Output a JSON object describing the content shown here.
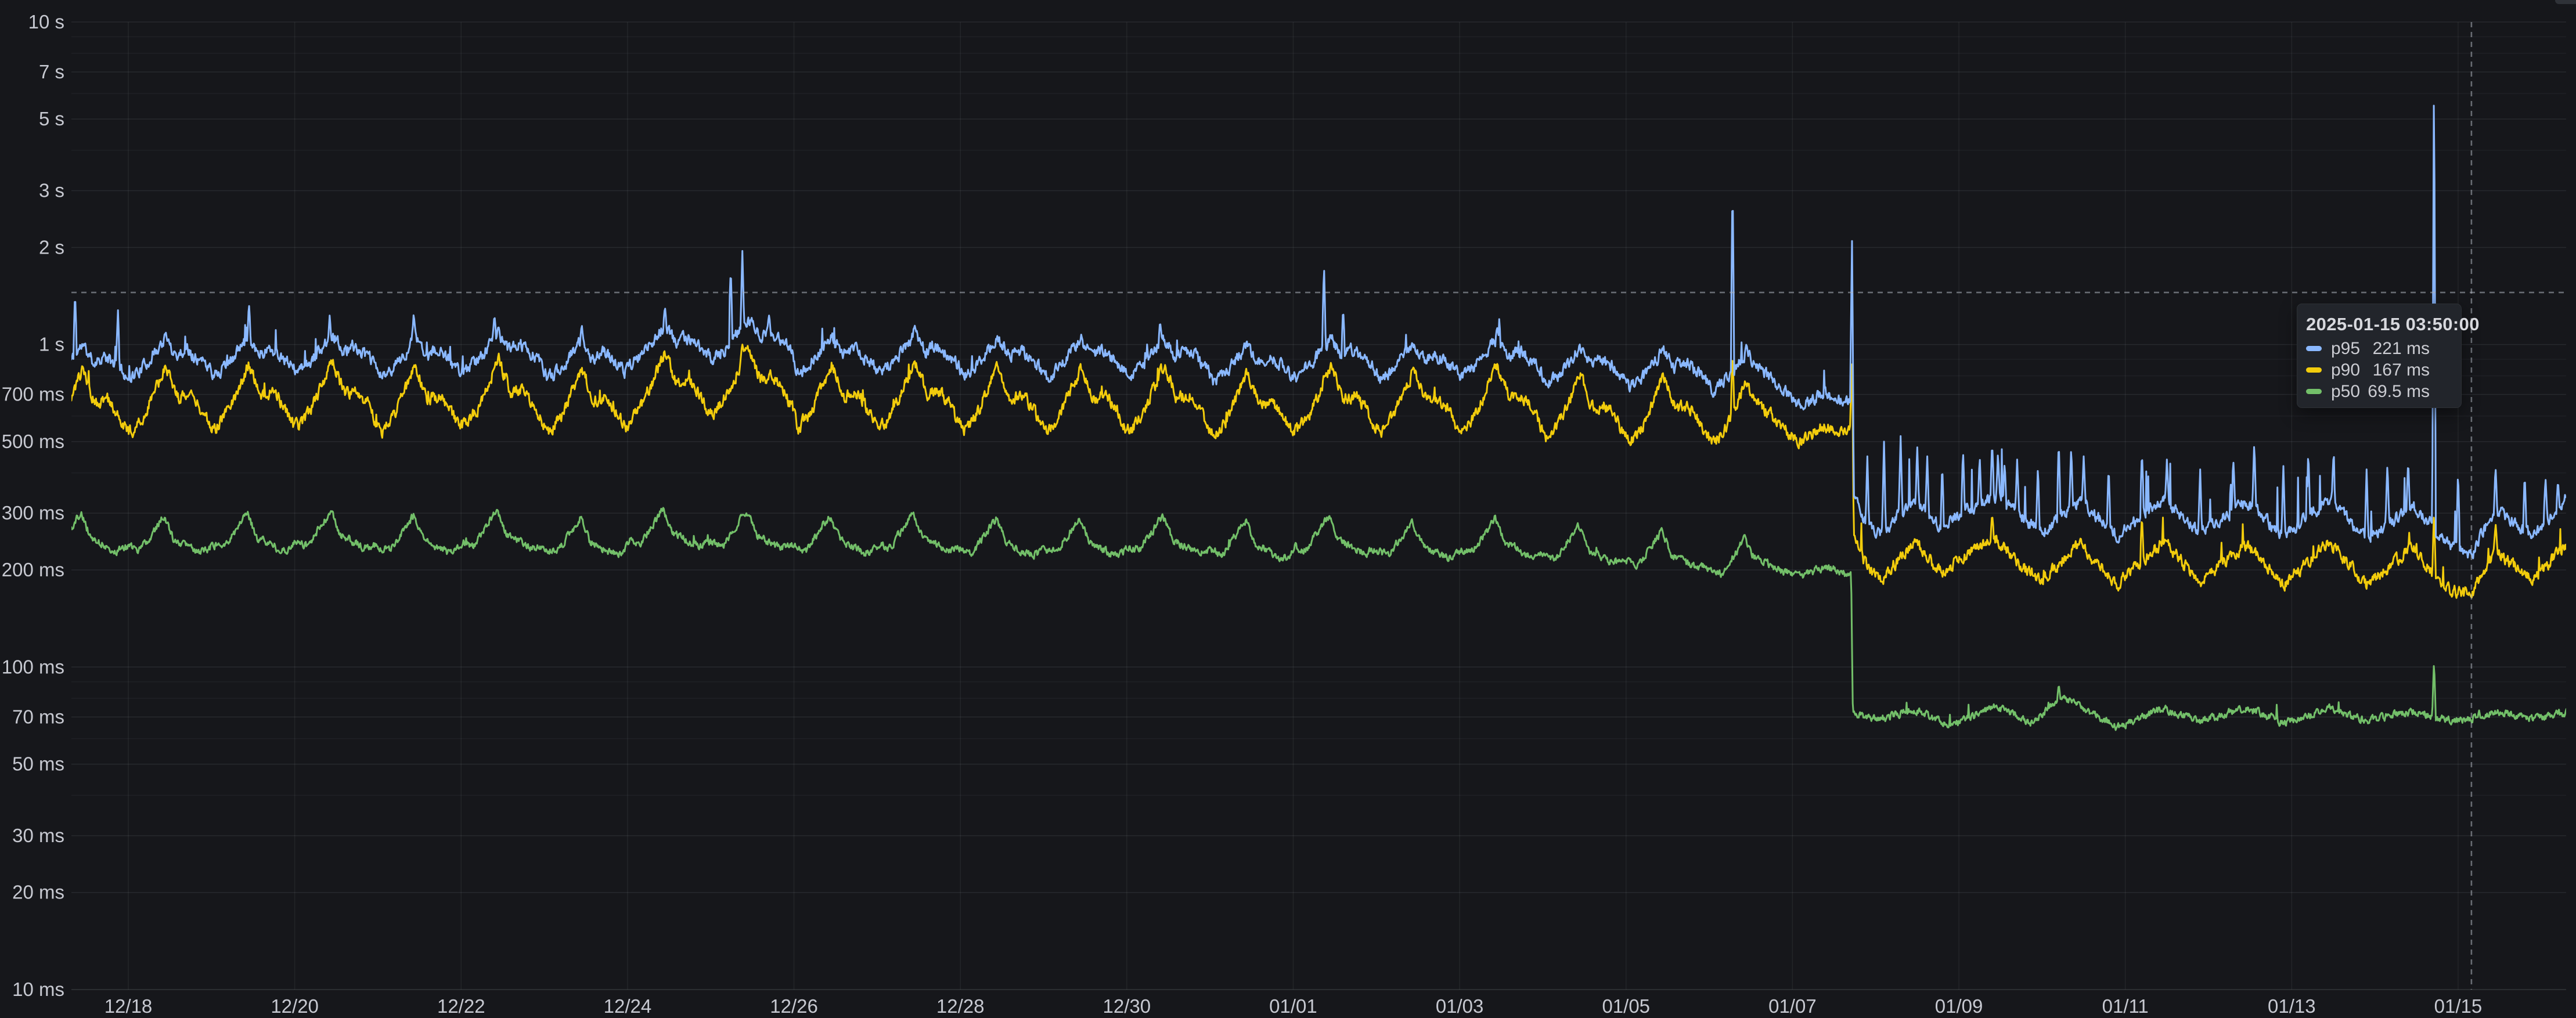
{
  "theme": {
    "background": "#16171B",
    "grid_color": "#C9D1D9",
    "axis_text_color": "#C7C9D1",
    "crosshair_color": "#ADB2BC",
    "tooltip_background": "#22252B",
    "scrollbar_color": "#2F3238"
  },
  "tooltip": {
    "timestamp": "2025-01-15 03:50:00",
    "rows": [
      {
        "label": "p95",
        "value": "221 ms",
        "color": "#8AB8FF"
      },
      {
        "label": "p90",
        "value": "167 ms",
        "color": "#F2CC0C"
      },
      {
        "label": "p50",
        "value": "69.5 ms",
        "color": "#73BF69"
      }
    ]
  },
  "chart_data": {
    "type": "line",
    "title": "",
    "xlabel": "",
    "ylabel": "",
    "legend_position": "none",
    "grid": true,
    "x_axis": {
      "unit": "date",
      "tick_labels": [
        "12/18",
        "12/20",
        "12/22",
        "12/24",
        "12/26",
        "12/28",
        "12/30",
        "01/01",
        "01/03",
        "01/05",
        "01/07",
        "01/09",
        "01/11",
        "01/13",
        "01/15"
      ],
      "tick_days": [
        0,
        2,
        4,
        6,
        8,
        10,
        12,
        14,
        16,
        18,
        20,
        22,
        24,
        26,
        28
      ],
      "range_days": [
        -0.684,
        29.3
      ]
    },
    "y_axis": {
      "unit": "ms",
      "scale": "log10",
      "range_ms": [
        10,
        10000
      ],
      "labeled_ticks": [
        {
          "v": 10000,
          "label": "10 s"
        },
        {
          "v": 7000,
          "label": "7 s"
        },
        {
          "v": 5000,
          "label": "5 s"
        },
        {
          "v": 3000,
          "label": "3 s"
        },
        {
          "v": 2000,
          "label": "2 s"
        },
        {
          "v": 1000,
          "label": "1 s"
        },
        {
          "v": 700,
          "label": "700 ms"
        },
        {
          "v": 500,
          "label": "500 ms"
        },
        {
          "v": 300,
          "label": "300 ms"
        },
        {
          "v": 200,
          "label": "200 ms"
        },
        {
          "v": 100,
          "label": "100 ms"
        },
        {
          "v": 70,
          "label": "70 ms"
        },
        {
          "v": 50,
          "label": "50 ms"
        },
        {
          "v": 30,
          "label": "30 ms"
        },
        {
          "v": 20,
          "label": "20 ms"
        },
        {
          "v": 10,
          "label": "10 ms"
        }
      ],
      "minor_gridline_mantissas": [
        2,
        3,
        4,
        5,
        6,
        7,
        8,
        9
      ]
    },
    "crosshair": {
      "x_day": 28.16,
      "y_ms": 1450,
      "hover_time": "2025-01-15 03:50:00"
    },
    "drop_event_day": 20.72,
    "series": [
      {
        "name": "p95",
        "color": "#8AB8FF",
        "template_until": 19.45,
        "daily_shape": {
          "offsets": [
            0.04,
            0.2,
            0.45,
            0.58,
            0.7,
            0.85,
            0.97
          ],
          "mult": [
            0.76,
            0.82,
            1.0,
            0.88,
            0.92,
            0.86,
            0.8
          ]
        },
        "daily_peaks_ms": [
          1000,
          1050,
          1060,
          1080,
          1040,
          1090,
          1030,
          1150,
          1200,
          1060,
          1080,
          1050,
          1040,
          1050,
          1000,
          1050,
          1020,
          1050,
          980,
          960,
          950,
          900
        ],
        "keypoints": [
          [
            19.5,
            900
          ],
          [
            19.8,
            760
          ],
          [
            20.1,
            645
          ],
          [
            20.35,
            705
          ],
          [
            20.6,
            670
          ],
          [
            20.7,
            660
          ],
          [
            20.73,
            340
          ],
          [
            20.85,
            290
          ],
          [
            21.05,
            255
          ],
          [
            21.45,
            330
          ],
          [
            21.8,
            270
          ],
          [
            22.0,
            300
          ],
          [
            22.45,
            340
          ],
          [
            22.8,
            285
          ],
          [
            23.0,
            262
          ],
          [
            23.45,
            330
          ],
          [
            23.9,
            255
          ],
          [
            24.45,
            335
          ],
          [
            24.9,
            260
          ],
          [
            25.45,
            325
          ],
          [
            25.9,
            255
          ],
          [
            26.45,
            330
          ],
          [
            26.9,
            250
          ],
          [
            27.45,
            315
          ],
          [
            27.9,
            240
          ],
          [
            28.16,
            224
          ],
          [
            28.45,
            310
          ],
          [
            28.9,
            252
          ],
          [
            29.3,
            335
          ]
        ],
        "spikes": [
          [
            -0.64,
            1460
          ],
          [
            -0.125,
            1300
          ],
          [
            1.45,
            1340
          ],
          [
            2.42,
            1230
          ],
          [
            3.43,
            1255
          ],
          [
            4.4,
            1240
          ],
          [
            5.45,
            1150
          ],
          [
            6.45,
            1300
          ],
          [
            7.24,
            1760
          ],
          [
            7.38,
            1950
          ],
          [
            7.7,
            1230
          ],
          [
            9.45,
            1150
          ],
          [
            12.4,
            1180
          ],
          [
            14.37,
            1780
          ],
          [
            14.6,
            1300
          ],
          [
            16.45,
            1130
          ],
          [
            19.28,
            3250
          ],
          [
            20.715,
            2230
          ],
          [
            20.9,
            450
          ],
          [
            21.1,
            500
          ],
          [
            21.3,
            520
          ],
          [
            21.5,
            480
          ],
          [
            21.62,
            450
          ],
          [
            21.8,
            430
          ],
          [
            22.05,
            470
          ],
          [
            22.25,
            450
          ],
          [
            22.4,
            500
          ],
          [
            22.47,
            465
          ],
          [
            22.55,
            430
          ],
          [
            22.7,
            440
          ],
          [
            22.95,
            420
          ],
          [
            23.2,
            510
          ],
          [
            23.35,
            480
          ],
          [
            23.5,
            450
          ],
          [
            23.8,
            420
          ],
          [
            24.2,
            470
          ],
          [
            24.5,
            440
          ],
          [
            24.9,
            410
          ],
          [
            25.3,
            430
          ],
          [
            25.55,
            500
          ],
          [
            25.9,
            420
          ],
          [
            26.2,
            460
          ],
          [
            26.5,
            440
          ],
          [
            26.9,
            410
          ],
          [
            27.15,
            430
          ],
          [
            27.4,
            440
          ],
          [
            27.71,
            7200
          ],
          [
            28.0,
            400
          ],
          [
            28.45,
            420
          ],
          [
            28.8,
            400
          ],
          [
            29.05,
            390
          ],
          [
            29.2,
            380
          ]
        ],
        "noise": {
          "ar_amp": 0.016,
          "shot_p_pre": 0.008,
          "shot_a_pre": 0.18,
          "shot_p_post": 0.03,
          "shot_a_post": 0.45,
          "seed": 11
        }
      },
      {
        "name": "p90",
        "color": "#F2CC0C",
        "template_until": 19.45,
        "daily_shape": {
          "offsets": [
            0.05,
            0.2,
            0.45,
            0.6,
            0.75,
            0.88,
            0.98
          ],
          "mult": [
            0.63,
            0.71,
            1.0,
            0.79,
            0.81,
            0.73,
            0.645
          ]
        },
        "daily_peaks_ms": [
          830,
          860,
          870,
          890,
          855,
          895,
          845,
          945,
          985,
          870,
          885,
          860,
          855,
          860,
          820,
          860,
          840,
          860,
          805,
          790,
          780,
          740
        ],
        "keypoints": [
          [
            19.5,
            700
          ],
          [
            19.8,
            580
          ],
          [
            20.1,
            495
          ],
          [
            20.35,
            560
          ],
          [
            20.6,
            535
          ],
          [
            20.7,
            545
          ],
          [
            20.73,
            250
          ],
          [
            20.85,
            215
          ],
          [
            21.05,
            185
          ],
          [
            21.45,
            245
          ],
          [
            21.8,
            195
          ],
          [
            22.0,
            215
          ],
          [
            22.45,
            250
          ],
          [
            22.8,
            200
          ],
          [
            23.0,
            186
          ],
          [
            23.45,
            240
          ],
          [
            23.9,
            180
          ],
          [
            24.45,
            245
          ],
          [
            24.9,
            185
          ],
          [
            25.45,
            240
          ],
          [
            25.9,
            180
          ],
          [
            26.45,
            245
          ],
          [
            26.9,
            180
          ],
          [
            27.45,
            235
          ],
          [
            27.9,
            172
          ],
          [
            28.16,
            168
          ],
          [
            28.45,
            230
          ],
          [
            28.9,
            185
          ],
          [
            29.3,
            242
          ]
        ],
        "spikes": [
          [
            7.38,
            1000
          ],
          [
            19.28,
            950
          ],
          [
            20.715,
            900
          ],
          [
            22.4,
            300
          ],
          [
            24.2,
            295
          ],
          [
            27.71,
            300
          ],
          [
            28.45,
            280
          ]
        ],
        "noise": {
          "ar_amp": 0.016,
          "shot_p_pre": 0.006,
          "shot_a_pre": 0.12,
          "shot_p_post": 0.018,
          "shot_a_post": 0.22,
          "seed": 23
        }
      },
      {
        "name": "p50",
        "color": "#73BF69",
        "template_until": 19.45,
        "daily_shape": {
          "offsets": [
            0.02,
            0.15,
            0.43,
            0.55,
            0.7,
            0.85,
            0.95
          ],
          "mult": [
            0.8,
            0.78,
            1.0,
            0.84,
            0.8,
            0.765,
            0.78
          ]
        },
        "daily_peaks_ms": [
          300,
          295,
          300,
          305,
          295,
          305,
          290,
          310,
          305,
          295,
          300,
          290,
          290,
          295,
          285,
          295,
          285,
          290,
          275,
          265,
          250,
          240
        ],
        "keypoints": [
          [
            19.5,
            225
          ],
          [
            19.8,
            202
          ],
          [
            20.1,
            190
          ],
          [
            20.4,
            205
          ],
          [
            20.6,
            196
          ],
          [
            20.705,
            193
          ],
          [
            20.725,
            72
          ],
          [
            21.05,
            69
          ],
          [
            21.45,
            74
          ],
          [
            21.9,
            66
          ],
          [
            22.45,
            75
          ],
          [
            22.9,
            67
          ],
          [
            23.2,
            80
          ],
          [
            23.45,
            76
          ],
          [
            23.9,
            65
          ],
          [
            24.45,
            74
          ],
          [
            24.9,
            68
          ],
          [
            25.45,
            75
          ],
          [
            25.9,
            67
          ],
          [
            26.45,
            74
          ],
          [
            26.9,
            68
          ],
          [
            27.45,
            73
          ],
          [
            27.9,
            68
          ],
          [
            28.16,
            69.5
          ],
          [
            28.45,
            73
          ],
          [
            28.9,
            69
          ],
          [
            29.3,
            72
          ]
        ],
        "spikes": [
          [
            23.2,
            88
          ],
          [
            27.71,
            104
          ]
        ],
        "noise": {
          "ar_amp": 0.01,
          "shot_p_pre": 0.004,
          "shot_a_pre": 0.06,
          "shot_p_post": 0.01,
          "shot_a_post": 0.1,
          "seed": 37
        }
      }
    ]
  }
}
